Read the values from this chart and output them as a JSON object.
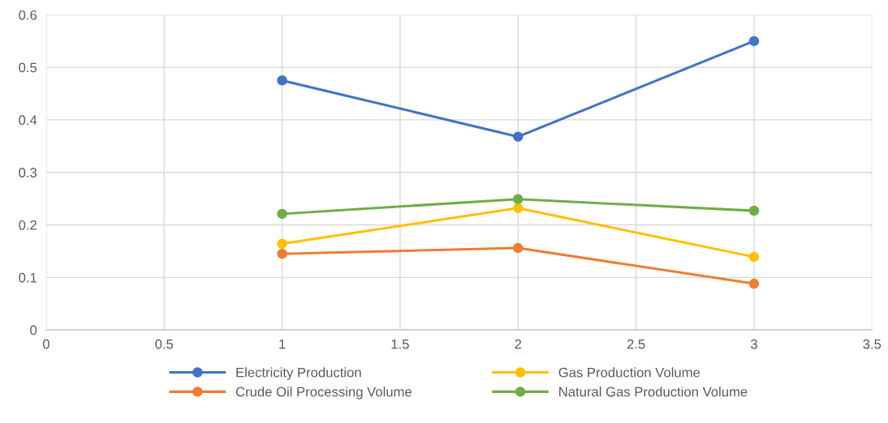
{
  "chart_data": {
    "type": "line",
    "x": [
      1,
      2,
      3
    ],
    "series": [
      {
        "name": "Electricity Production",
        "color": "#4472c4",
        "values": [
          0.475,
          0.368,
          0.55
        ]
      },
      {
        "name": "Crude Oil Processing Volume",
        "color": "#ed7d31",
        "values": [
          0.145,
          0.156,
          0.088
        ]
      },
      {
        "name": "Gas Production Volume",
        "color": "#ffc000",
        "values": [
          0.164,
          0.232,
          0.139
        ]
      },
      {
        "name": "Natural Gas Production Volume",
        "color": "#70ad47",
        "values": [
          0.221,
          0.249,
          0.227
        ]
      }
    ],
    "xlim": [
      0,
      3.5
    ],
    "xticks": [
      0,
      0.5,
      1,
      1.5,
      2,
      2.5,
      3,
      3.5
    ],
    "ylim": [
      0,
      0.6
    ],
    "yticks": [
      0,
      0.1,
      0.2,
      0.3,
      0.4,
      0.5,
      0.6
    ],
    "grid": true,
    "legend": "bottom",
    "marker": "circle",
    "line_style": "solid"
  }
}
